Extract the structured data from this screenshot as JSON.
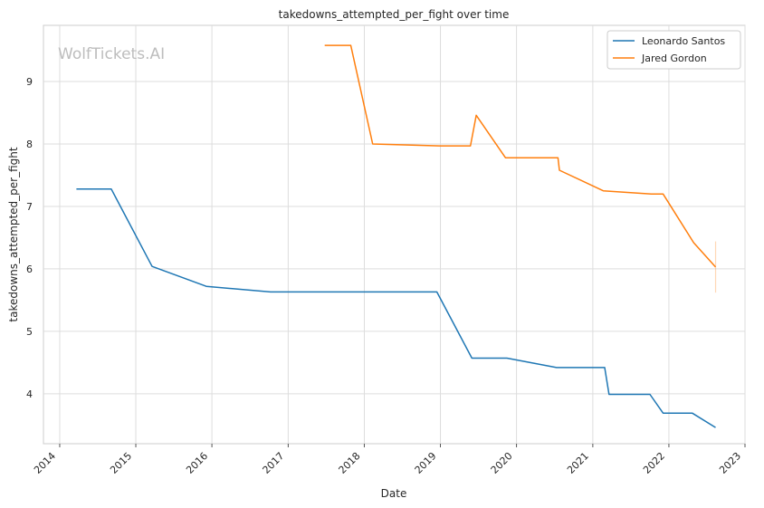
{
  "chart_data": {
    "type": "line",
    "title": "takedowns_attempted_per_fight over time",
    "xlabel": "Date",
    "ylabel": "takedowns_attempted_per_fight",
    "watermark": "WolfTickets.AI",
    "x_ticks": [
      "2014",
      "2015",
      "2016",
      "2017",
      "2018",
      "2019",
      "2020",
      "2021",
      "2022",
      "2023"
    ],
    "y_ticks": [
      "4",
      "5",
      "6",
      "7",
      "8",
      "9"
    ],
    "xlim": [
      "2013-10-15",
      "2023-01-01"
    ],
    "ylim": [
      3.2,
      9.9
    ],
    "grid": true,
    "legend_position": "top-right",
    "series": [
      {
        "name": "Leonardo Santos",
        "color": "#1f77b4",
        "points": [
          [
            "2014-03-22",
            7.28
          ],
          [
            "2014-09-05",
            7.28
          ],
          [
            "2015-03-20",
            6.04
          ],
          [
            "2015-12-05",
            5.72
          ],
          [
            "2016-10-08",
            5.63
          ],
          [
            "2018-12-15",
            5.63
          ],
          [
            "2019-06-01",
            4.57
          ],
          [
            "2019-11-16",
            4.57
          ],
          [
            "2020-07-11",
            4.42
          ],
          [
            "2021-02-27",
            4.42
          ],
          [
            "2021-03-20",
            3.99
          ],
          [
            "2021-10-02",
            3.99
          ],
          [
            "2021-12-04",
            3.69
          ],
          [
            "2022-04-23",
            3.69
          ],
          [
            "2022-08-13",
            3.46
          ]
        ]
      },
      {
        "name": "Jared Gordon",
        "color": "#ff7f0e",
        "points": [
          [
            "2017-06-25",
            9.58
          ],
          [
            "2017-10-28",
            9.58
          ],
          [
            "2018-02-10",
            8.0
          ],
          [
            "2018-12-29",
            7.97
          ],
          [
            "2019-05-25",
            7.97
          ],
          [
            "2019-06-22",
            8.46
          ],
          [
            "2019-11-09",
            7.78
          ],
          [
            "2020-07-18",
            7.78
          ],
          [
            "2020-07-25",
            7.58
          ],
          [
            "2021-02-20",
            7.25
          ],
          [
            "2021-10-09",
            7.2
          ],
          [
            "2021-12-04",
            7.2
          ],
          [
            "2022-04-30",
            6.42
          ],
          [
            "2022-08-13",
            6.03
          ]
        ],
        "error_band": {
          "x": "2022-08-13",
          "low": 5.62,
          "high": 6.44
        }
      }
    ]
  }
}
